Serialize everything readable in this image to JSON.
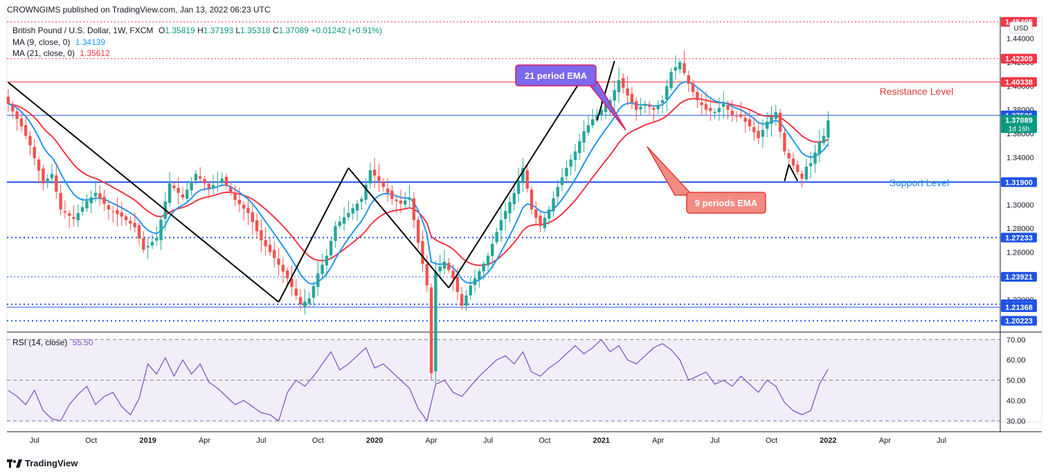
{
  "publisher": {
    "text": "CROWNGIMS published on TradingView.com, Jan 13, 2022 06:23 UTC"
  },
  "legend": {
    "symbol": "British Pound / U.S. Dollar, 1W, FXCM",
    "ohlc": {
      "o_label": "O",
      "o_value": "1.35819",
      "h_label": "H",
      "h_value": "1.37193",
      "l_label": "L",
      "l_value": "1.35318",
      "c_label": "C",
      "c_value": "1.37089",
      "change": "+0.01242 (+0.91%)"
    },
    "ma9": {
      "label": "MA (9, close, 0)",
      "value": "1.34139",
      "color": "#2196f3"
    },
    "ma21": {
      "label": "MA (21, close, 0)",
      "value": "1.35612",
      "color": "#f23645"
    },
    "rsi": {
      "label": "RSI (14, close)",
      "value": "55.50",
      "color": "#7e57c2"
    }
  },
  "currency": "USD",
  "annotations": {
    "ema21_label": "21 period EMA",
    "ema9_label": "9 periods EMA",
    "resistance_label": "Resistance Level",
    "support_label": "Support Level"
  },
  "price_tags": [
    {
      "value": "1.45405",
      "color": "#f23645",
      "price": 1.45405
    },
    {
      "value": "1.42309",
      "color": "#f23645",
      "price": 1.42309
    },
    {
      "value": "1.40338",
      "color": "#f23645",
      "price": 1.40338
    },
    {
      "value": "1.37526",
      "color": "#1e53e5",
      "price": 1.37526
    },
    {
      "value": "1.37089",
      "sub": "1d 16h",
      "color": "#089981",
      "price": 1.37089
    },
    {
      "value": "1.31900",
      "color": "#1e53e5",
      "price": 1.319
    },
    {
      "value": "1.27233",
      "color": "#1e53e5",
      "price": 1.27233
    },
    {
      "value": "1.23921",
      "color": "#1e53e5",
      "price": 1.23921
    },
    {
      "value": "1.21610",
      "color": "#1e53e5",
      "price": 1.2161
    },
    {
      "value": "1.21368",
      "color": "#1e53e5",
      "price": 1.21368
    },
    {
      "value": "1.20223",
      "color": "#1e53e5",
      "price": 1.20223
    }
  ],
  "chart_data": {
    "type": "candlestick",
    "price_axis_ticks": [
      "1.44000",
      "1.42000",
      "1.40000",
      "1.38000",
      "1.36000",
      "1.34000",
      "1.32000",
      "1.30000",
      "1.28000",
      "1.26000",
      "1.24000",
      "1.22000"
    ],
    "price_ylim": [
      1.195,
      1.455
    ],
    "rsi_axis_ticks": [
      "70.00",
      "60.00",
      "50.00",
      "40.00",
      "30.00"
    ],
    "rsi_ylim": [
      26,
      73
    ],
    "rsi_levels": [
      70,
      50,
      30
    ],
    "time_labels": [
      {
        "label": "Jul",
        "week": 6,
        "bold": false
      },
      {
        "label": "Oct",
        "week": 19,
        "bold": false
      },
      {
        "label": "2019",
        "week": 32,
        "bold": true
      },
      {
        "label": "Apr",
        "week": 45,
        "bold": false
      },
      {
        "label": "Jul",
        "week": 58,
        "bold": false
      },
      {
        "label": "Oct",
        "week": 71,
        "bold": false
      },
      {
        "label": "2020",
        "week": 84,
        "bold": true
      },
      {
        "label": "Apr",
        "week": 97,
        "bold": false
      },
      {
        "label": "Jul",
        "week": 110,
        "bold": false
      },
      {
        "label": "Oct",
        "week": 123,
        "bold": false
      },
      {
        "label": "2021",
        "week": 136,
        "bold": true
      },
      {
        "label": "Apr",
        "week": 149,
        "bold": false
      },
      {
        "label": "Jul",
        "week": 162,
        "bold": false
      },
      {
        "label": "Oct",
        "week": 175,
        "bold": false
      },
      {
        "label": "2022",
        "week": 188,
        "bold": true
      },
      {
        "label": "Apr",
        "week": 201,
        "bold": false
      },
      {
        "label": "Jul",
        "week": 214,
        "bold": false
      }
    ],
    "close_anchors": [
      [
        0,
        1.385
      ],
      [
        3,
        1.366
      ],
      [
        5,
        1.35
      ],
      [
        8,
        1.318
      ],
      [
        10,
        1.326
      ],
      [
        12,
        1.296
      ],
      [
        15,
        1.288
      ],
      [
        18,
        1.303
      ],
      [
        20,
        1.31
      ],
      [
        23,
        1.296
      ],
      [
        26,
        1.29
      ],
      [
        29,
        1.281
      ],
      [
        31,
        1.262
      ],
      [
        34,
        1.272
      ],
      [
        37,
        1.318
      ],
      [
        40,
        1.306
      ],
      [
        43,
        1.326
      ],
      [
        46,
        1.314
      ],
      [
        49,
        1.322
      ],
      [
        52,
        1.304
      ],
      [
        55,
        1.293
      ],
      [
        58,
        1.27
      ],
      [
        61,
        1.255
      ],
      [
        64,
        1.238
      ],
      [
        67,
        1.216
      ],
      [
        69,
        1.221
      ],
      [
        71,
        1.242
      ],
      [
        73,
        1.257
      ],
      [
        75,
        1.282
      ],
      [
        78,
        1.293
      ],
      [
        81,
        1.305
      ],
      [
        83,
        1.329
      ],
      [
        85,
        1.32
      ],
      [
        88,
        1.305
      ],
      [
        90,
        1.301
      ],
      [
        92,
        1.306
      ],
      [
        94,
        1.268
      ],
      [
        96,
        1.232
      ],
      [
        97,
        1.158
      ],
      [
        98,
        1.244
      ],
      [
        100,
        1.252
      ],
      [
        102,
        1.238
      ],
      [
        104,
        1.215
      ],
      [
        106,
        1.232
      ],
      [
        108,
        1.244
      ],
      [
        110,
        1.257
      ],
      [
        113,
        1.287
      ],
      [
        116,
        1.31
      ],
      [
        118,
        1.331
      ],
      [
        120,
        1.296
      ],
      [
        122,
        1.282
      ],
      [
        124,
        1.296
      ],
      [
        126,
        1.315
      ],
      [
        128,
        1.331
      ],
      [
        130,
        1.345
      ],
      [
        132,
        1.362
      ],
      [
        134,
        1.372
      ],
      [
        136,
        1.38
      ],
      [
        138,
        1.388
      ],
      [
        140,
        1.405
      ],
      [
        142,
        1.392
      ],
      [
        144,
        1.38
      ],
      [
        146,
        1.385
      ],
      [
        148,
        1.38
      ],
      [
        150,
        1.388
      ],
      [
        152,
        1.412
      ],
      [
        154,
        1.42
      ],
      [
        156,
        1.402
      ],
      [
        158,
        1.388
      ],
      [
        160,
        1.38
      ],
      [
        162,
        1.378
      ],
      [
        164,
        1.385
      ],
      [
        166,
        1.375
      ],
      [
        168,
        1.374
      ],
      [
        170,
        1.366
      ],
      [
        172,
        1.356
      ],
      [
        174,
        1.37
      ],
      [
        176,
        1.378
      ],
      [
        178,
        1.345
      ],
      [
        180,
        1.333
      ],
      [
        182,
        1.322
      ],
      [
        183,
        1.332
      ],
      [
        184,
        1.335
      ],
      [
        186,
        1.353
      ],
      [
        187,
        1.358
      ],
      [
        188,
        1.371
      ]
    ],
    "rsi_anchors": [
      [
        0,
        45
      ],
      [
        2,
        42
      ],
      [
        4,
        38
      ],
      [
        6,
        45
      ],
      [
        8,
        35
      ],
      [
        10,
        31
      ],
      [
        12,
        30
      ],
      [
        14,
        38
      ],
      [
        16,
        43
      ],
      [
        18,
        47
      ],
      [
        20,
        38
      ],
      [
        22,
        42
      ],
      [
        24,
        44
      ],
      [
        26,
        37
      ],
      [
        28,
        33
      ],
      [
        30,
        41
      ],
      [
        32,
        58
      ],
      [
        34,
        53
      ],
      [
        36,
        61
      ],
      [
        38,
        52
      ],
      [
        40,
        60
      ],
      [
        42,
        53
      ],
      [
        44,
        58
      ],
      [
        46,
        49
      ],
      [
        48,
        46
      ],
      [
        50,
        42
      ],
      [
        52,
        38
      ],
      [
        54,
        40
      ],
      [
        56,
        37
      ],
      [
        58,
        34
      ],
      [
        60,
        33
      ],
      [
        62,
        30
      ],
      [
        64,
        44
      ],
      [
        66,
        50
      ],
      [
        68,
        47
      ],
      [
        70,
        52
      ],
      [
        72,
        58
      ],
      [
        74,
        64
      ],
      [
        76,
        55
      ],
      [
        78,
        58
      ],
      [
        80,
        62
      ],
      [
        82,
        66
      ],
      [
        84,
        56
      ],
      [
        86,
        58
      ],
      [
        88,
        54
      ],
      [
        90,
        50
      ],
      [
        92,
        46
      ],
      [
        94,
        36
      ],
      [
        96,
        30
      ],
      [
        98,
        48
      ],
      [
        100,
        50
      ],
      [
        102,
        44
      ],
      [
        104,
        42
      ],
      [
        106,
        47
      ],
      [
        108,
        52
      ],
      [
        110,
        56
      ],
      [
        112,
        60
      ],
      [
        114,
        62
      ],
      [
        116,
        58
      ],
      [
        118,
        64
      ],
      [
        120,
        54
      ],
      [
        122,
        52
      ],
      [
        124,
        56
      ],
      [
        126,
        59
      ],
      [
        128,
        63
      ],
      [
        130,
        67
      ],
      [
        132,
        63
      ],
      [
        134,
        66
      ],
      [
        136,
        70
      ],
      [
        138,
        64
      ],
      [
        140,
        67
      ],
      [
        142,
        60
      ],
      [
        144,
        58
      ],
      [
        146,
        62
      ],
      [
        148,
        66
      ],
      [
        150,
        68
      ],
      [
        152,
        65
      ],
      [
        154,
        60
      ],
      [
        156,
        50
      ],
      [
        158,
        52
      ],
      [
        160,
        54
      ],
      [
        162,
        48
      ],
      [
        164,
        50
      ],
      [
        166,
        47
      ],
      [
        168,
        52
      ],
      [
        170,
        48
      ],
      [
        172,
        44
      ],
      [
        174,
        50
      ],
      [
        176,
        47
      ],
      [
        178,
        39
      ],
      [
        180,
        35
      ],
      [
        182,
        33
      ],
      [
        184,
        35
      ],
      [
        186,
        48
      ],
      [
        188,
        55.5
      ]
    ],
    "trendlines": [
      {
        "from": [
          0,
          1.403
        ],
        "to": [
          62,
          1.218
        ],
        "color": "#000000"
      },
      {
        "from": [
          62,
          1.218
        ],
        "to": [
          78,
          1.331
        ],
        "color": "#000000"
      },
      {
        "from": [
          78,
          1.331
        ],
        "to": [
          101,
          1.23
        ],
        "color": "#000000"
      },
      {
        "from": [
          101,
          1.23
        ],
        "to": [
          131,
          1.403
        ],
        "color": "#000000"
      },
      {
        "from": [
          135,
          1.371
        ],
        "to": [
          139,
          1.421
        ],
        "color": "#000000"
      },
      {
        "from": [
          178,
          1.32
        ],
        "to": [
          179,
          1.334
        ],
        "color": "#000000"
      },
      {
        "from": [
          179,
          1.334
        ],
        "to": [
          181,
          1.32
        ],
        "color": "#000000"
      }
    ],
    "horizontal_levels": [
      {
        "price": 1.45405,
        "style": "dotted",
        "color": "#f23645"
      },
      {
        "price": 1.42309,
        "style": "dotted",
        "color": "#f23645"
      },
      {
        "price": 1.40338,
        "style": "solid",
        "color": "#f23645"
      },
      {
        "price": 1.37526,
        "style": "solid",
        "color": "#1e53e5"
      },
      {
        "price": 1.319,
        "style": "solid-bold",
        "color": "#1e53e5"
      },
      {
        "price": 1.27233,
        "style": "dotted-bold",
        "color": "#1e53e5"
      },
      {
        "price": 1.23921,
        "style": "dotted",
        "color": "#1e53e5"
      },
      {
        "price": 1.2161,
        "style": "dotted-bold",
        "color": "#1e53e5"
      },
      {
        "price": 1.21368,
        "style": "solid",
        "color": "#1e53e5"
      },
      {
        "price": 1.20223,
        "style": "dotted-bold",
        "color": "#1e53e5"
      }
    ]
  },
  "footer": {
    "brand": "TradingView"
  }
}
